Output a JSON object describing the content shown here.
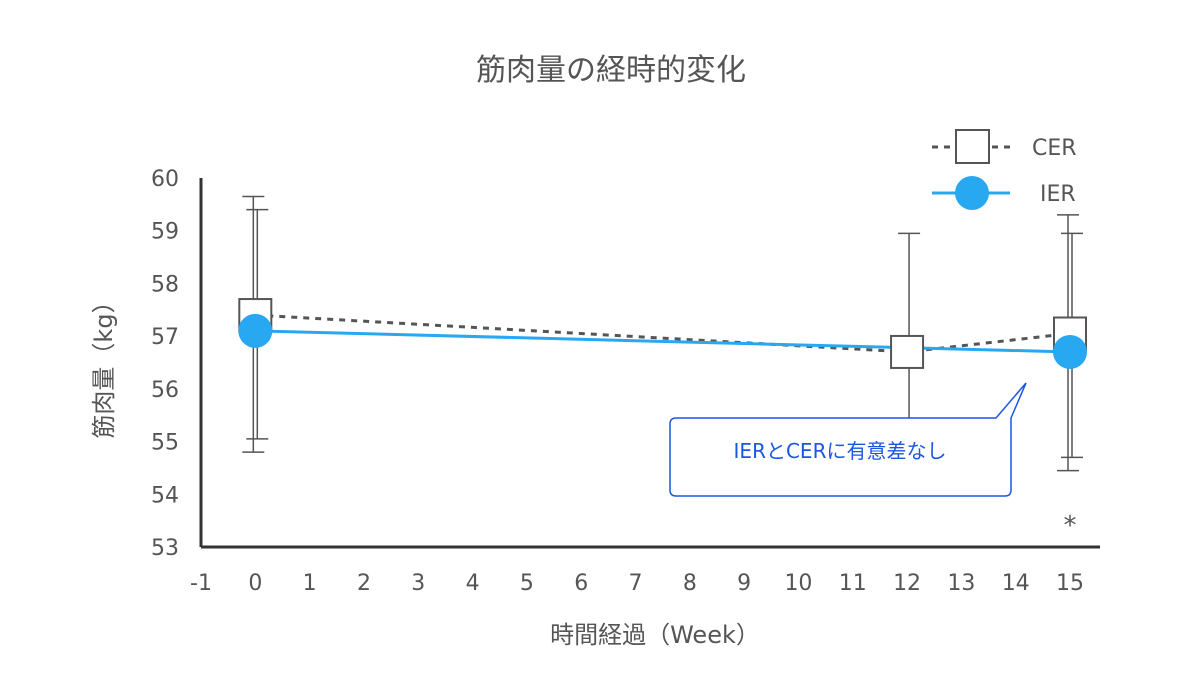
{
  "chart_data": {
    "type": "line",
    "title": "筋肉量の経時的変化",
    "xlabel": "時間経過（Week）",
    "ylabel": "筋肉量（kg）",
    "xlim": [
      -1,
      15
    ],
    "ylim": [
      53,
      60
    ],
    "x_ticks": [
      -1,
      0,
      1,
      2,
      3,
      4,
      5,
      6,
      7,
      8,
      9,
      10,
      11,
      12,
      13,
      14,
      15
    ],
    "y_ticks": [
      53,
      54,
      55,
      56,
      57,
      58,
      59,
      60
    ],
    "legend_position": "top-right",
    "series": [
      {
        "name": "CER",
        "style": "dashed",
        "marker": "square",
        "color": "#555555",
        "marker_fill": "#ffffff",
        "points": [
          {
            "x": 0,
            "y": 57.4,
            "err_low": 55.05,
            "err_high": 59.4
          },
          {
            "x": 12,
            "y": 56.7,
            "err_low": 54.5,
            "err_high": 58.95
          },
          {
            "x": 15,
            "y": 57.05,
            "err_low": 54.7,
            "err_high": 58.95
          }
        ]
      },
      {
        "name": "IER",
        "style": "solid",
        "marker": "circle",
        "color": "#29a8f2",
        "marker_fill": "#29a8f2",
        "points": [
          {
            "x": 0,
            "y": 57.1,
            "err_low": 54.8,
            "err_high": 59.65
          },
          {
            "x": 15,
            "y": 56.7,
            "err_low": 54.45,
            "err_high": 59.3
          }
        ]
      }
    ],
    "annotations": [
      {
        "text": "IERとCERに有意差なし",
        "type": "callout"
      },
      {
        "text": "*",
        "x": 15
      }
    ]
  },
  "colors": {
    "text": "#555555",
    "axis": "#333333",
    "callout_border": "#1a56e0",
    "callout_text": "#1a56e0"
  }
}
